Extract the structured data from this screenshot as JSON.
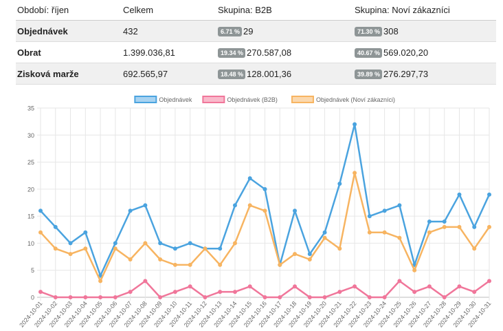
{
  "summary_table": {
    "headers": [
      "Období: říjen",
      "Celkem",
      "Skupina: B2B",
      "Skupina: Noví zákazníci"
    ],
    "rows": [
      {
        "label": "Objednávek",
        "total": "432",
        "b2b_pct": "6.71 %",
        "b2b_value": "29",
        "new_pct": "71.30 %",
        "new_value": "308"
      },
      {
        "label": "Obrat",
        "total": "1.399.036,81",
        "b2b_pct": "19.34 %",
        "b2b_value": "270.587,08",
        "new_pct": "40.67 %",
        "new_value": "569.020,20"
      },
      {
        "label": "Zisková marže",
        "total": "692.565,97",
        "b2b_pct": "18.48 %",
        "b2b_value": "128.001,36",
        "new_pct": "39.89 %",
        "new_value": "276.297,73"
      }
    ]
  },
  "chart_data": {
    "type": "line",
    "title": "",
    "ylim": [
      0,
      35
    ],
    "yticks": [
      0,
      5,
      10,
      15,
      20,
      25,
      30,
      35
    ],
    "legend_position": "top",
    "categories": [
      "2024-10-01",
      "2024-10-02",
      "2024-10-03",
      "2024-10-04",
      "2024-10-05",
      "2024-10-06",
      "2024-10-07",
      "2024-10-08",
      "2024-10-09",
      "2024-10-10",
      "2024-10-11",
      "2024-10-12",
      "2024-10-13",
      "2024-10-14",
      "2024-10-15",
      "2024-10-16",
      "2024-10-17",
      "2024-10-18",
      "2024-10-19",
      "2024-10-20",
      "2024-10-21",
      "2024-10-22",
      "2024-10-23",
      "2024-10-24",
      "2024-10-25",
      "2024-10-26",
      "2024-10-27",
      "2024-10-28",
      "2024-10-29",
      "2024-10-30",
      "2024-10-31"
    ],
    "series": [
      {
        "name": "Objednávek",
        "color": "#4aa3df",
        "fill": "#a8d3f1",
        "values": [
          16,
          13,
          10,
          12,
          4,
          10,
          16,
          17,
          10,
          9,
          10,
          9,
          9,
          17,
          22,
          20,
          6,
          16,
          8,
          12,
          21,
          32,
          15,
          16,
          17,
          6,
          14,
          14,
          19,
          13,
          19
        ]
      },
      {
        "name": "Objednávek (B2B)",
        "color": "#f0769a",
        "fill": "#f9b9cb",
        "values": [
          1,
          0,
          0,
          0,
          0,
          0,
          1,
          3,
          0,
          1,
          2,
          0,
          1,
          1,
          2,
          0,
          0,
          2,
          0,
          0,
          1,
          2,
          0,
          0,
          3,
          1,
          2,
          0,
          2,
          1,
          3
        ]
      },
      {
        "name": "Objednávek (Noví zákazníci)",
        "color": "#f7b461",
        "fill": "#fbd8ad",
        "values": [
          12,
          9,
          8,
          9,
          3,
          9,
          7,
          10,
          7,
          6,
          6,
          9,
          6,
          10,
          17,
          16,
          6,
          8,
          7,
          11,
          9,
          23,
          12,
          12,
          11,
          5,
          12,
          13,
          13,
          9,
          13
        ]
      }
    ]
  }
}
